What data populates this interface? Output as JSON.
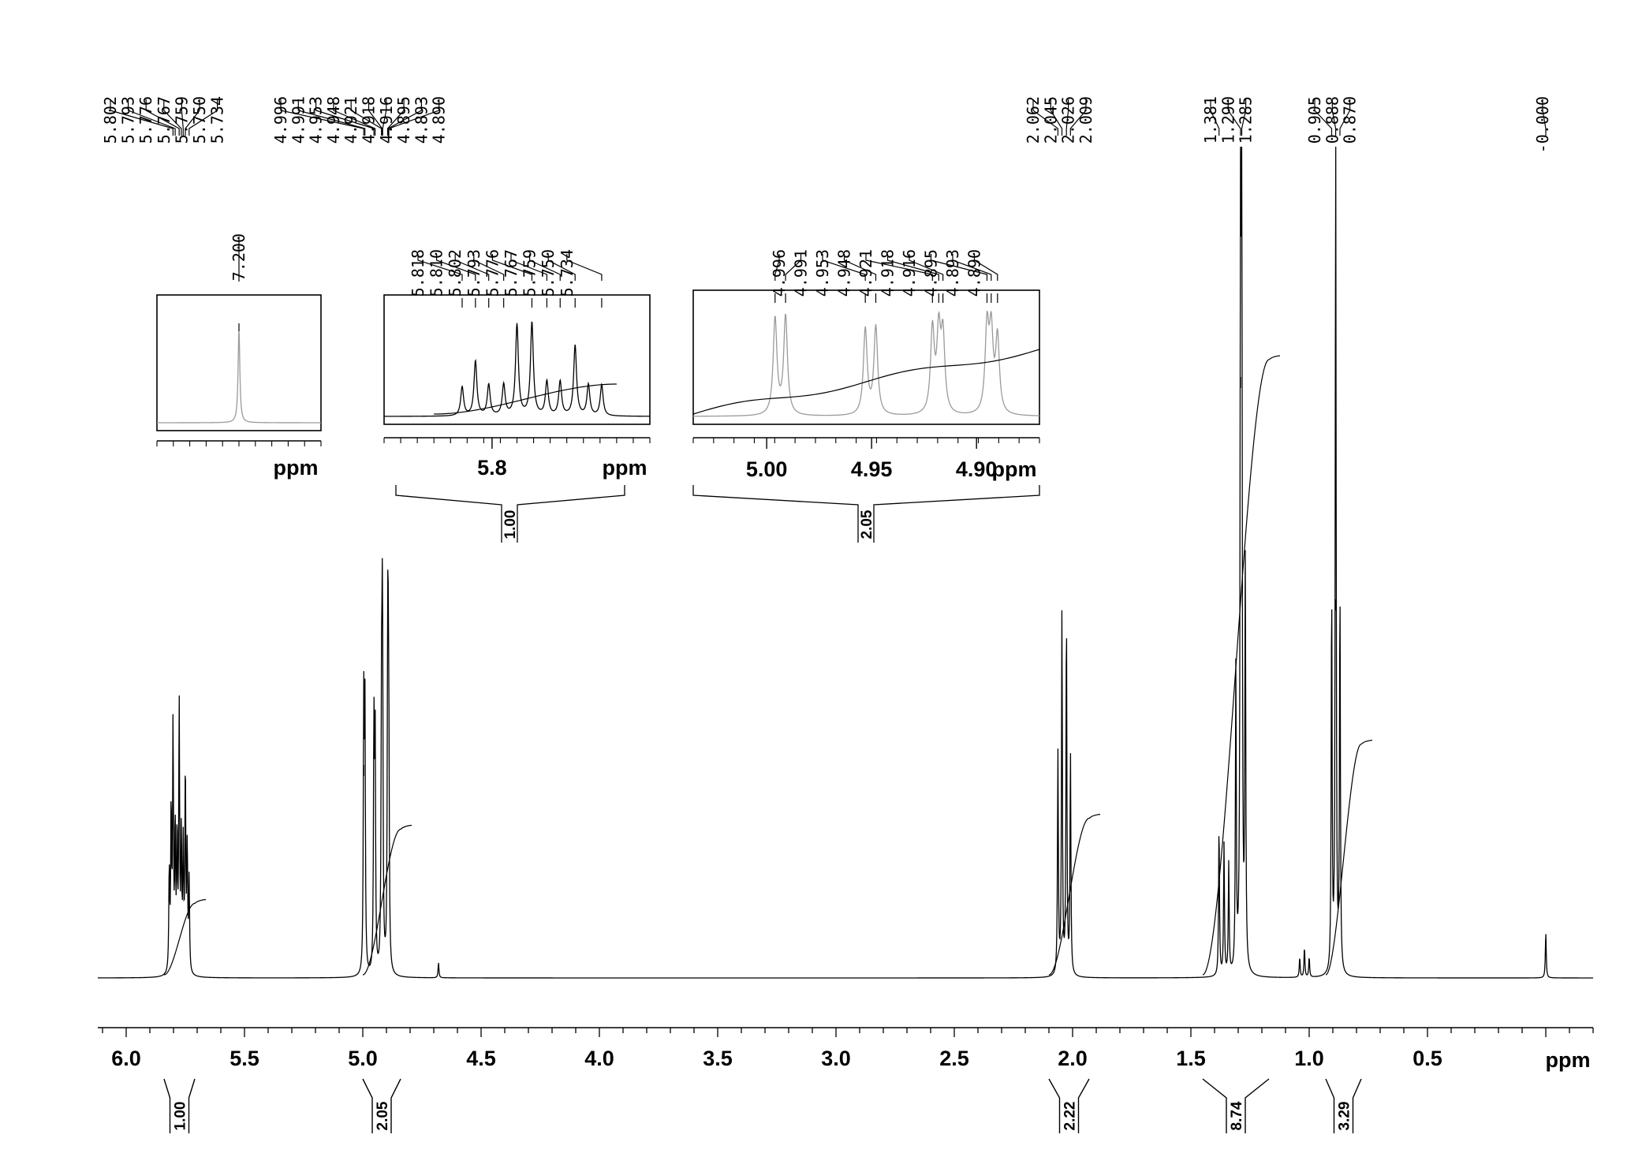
{
  "chart_data": {
    "type": "line",
    "nucleus": "1H NMR spectrum",
    "x_unit": "ppm",
    "xlim": [
      6.12,
      -0.2
    ],
    "x_reversed": true,
    "grid": false,
    "x_ticks": [
      {
        "value": 6.0,
        "label": "6.0"
      },
      {
        "value": 5.5,
        "label": "5.5"
      },
      {
        "value": 5.0,
        "label": "5.0"
      },
      {
        "value": 4.5,
        "label": "4.5"
      },
      {
        "value": 4.0,
        "label": "4.0"
      },
      {
        "value": 3.5,
        "label": "3.5"
      },
      {
        "value": 3.0,
        "label": "3.0"
      },
      {
        "value": 2.5,
        "label": "2.5"
      },
      {
        "value": 2.0,
        "label": "2.0"
      },
      {
        "value": 1.5,
        "label": "1.5"
      },
      {
        "value": 1.0,
        "label": "1.0"
      },
      {
        "value": 0.5,
        "label": "0.5"
      }
    ],
    "peaks": [
      {
        "ppm": 5.818,
        "height": 0.1
      },
      {
        "ppm": 5.81,
        "height": 0.16
      },
      {
        "ppm": 5.802,
        "height": 0.24
      },
      {
        "ppm": 5.793,
        "height": 0.14
      },
      {
        "ppm": 5.785,
        "height": 0.13
      },
      {
        "ppm": 5.776,
        "height": 0.26
      },
      {
        "ppm": 5.767,
        "height": 0.13
      },
      {
        "ppm": 5.759,
        "height": 0.12
      },
      {
        "ppm": 5.75,
        "height": 0.2
      },
      {
        "ppm": 5.742,
        "height": 0.12
      },
      {
        "ppm": 5.734,
        "height": 0.09
      },
      {
        "ppm": 4.996,
        "height": 0.26
      },
      {
        "ppm": 4.991,
        "height": 0.26
      },
      {
        "ppm": 4.953,
        "height": 0.24
      },
      {
        "ppm": 4.948,
        "height": 0.24
      },
      {
        "ppm": 4.921,
        "height": 0.22
      },
      {
        "ppm": 4.918,
        "height": 0.22
      },
      {
        "ppm": 4.916,
        "height": 0.2
      },
      {
        "ppm": 4.895,
        "height": 0.22
      },
      {
        "ppm": 4.893,
        "height": 0.21
      },
      {
        "ppm": 4.89,
        "height": 0.2
      },
      {
        "ppm": 4.68,
        "height": 0.015
      },
      {
        "ppm": 2.062,
        "height": 0.22
      },
      {
        "ppm": 2.045,
        "height": 0.36
      },
      {
        "ppm": 2.026,
        "height": 0.36
      },
      {
        "ppm": 2.009,
        "height": 0.22
      },
      {
        "ppm": 1.381,
        "height": 0.15
      },
      {
        "ppm": 1.36,
        "height": 0.13
      },
      {
        "ppm": 1.34,
        "height": 0.11
      },
      {
        "ppm": 1.31,
        "height": 0.3
      },
      {
        "ppm": 1.29,
        "height": 0.82
      },
      {
        "ppm": 1.285,
        "height": 0.78
      },
      {
        "ppm": 1.27,
        "height": 0.4
      },
      {
        "ppm": 1.04,
        "height": 0.02
      },
      {
        "ppm": 1.02,
        "height": 0.03
      },
      {
        "ppm": 1.0,
        "height": 0.02
      },
      {
        "ppm": 0.905,
        "height": 0.38
      },
      {
        "ppm": 0.888,
        "height": 0.85
      },
      {
        "ppm": 0.87,
        "height": 0.38
      },
      {
        "ppm": 0.0,
        "height": 0.045
      }
    ],
    "peak_labels": [
      {
        "label": "5.802",
        "ppm": 5.802
      },
      {
        "label": "5.793",
        "ppm": 5.793
      },
      {
        "label": "5.776",
        "ppm": 5.776
      },
      {
        "label": "5.767",
        "ppm": 5.767
      },
      {
        "label": "5.759",
        "ppm": 5.759
      },
      {
        "label": "5.750",
        "ppm": 5.75
      },
      {
        "label": "5.734",
        "ppm": 5.734
      },
      {
        "label": "4.996",
        "ppm": 4.996
      },
      {
        "label": "4.991",
        "ppm": 4.991
      },
      {
        "label": "4.953",
        "ppm": 4.953
      },
      {
        "label": "4.948",
        "ppm": 4.948
      },
      {
        "label": "4.921",
        "ppm": 4.921
      },
      {
        "label": "4.918",
        "ppm": 4.918
      },
      {
        "label": "4.916",
        "ppm": 4.916
      },
      {
        "label": "4.895",
        "ppm": 4.895
      },
      {
        "label": "4.893",
        "ppm": 4.893
      },
      {
        "label": "4.890",
        "ppm": 4.89
      },
      {
        "label": "2.062",
        "ppm": 2.062
      },
      {
        "label": "2.045",
        "ppm": 2.045
      },
      {
        "label": "2.026",
        "ppm": 2.026
      },
      {
        "label": "2.009",
        "ppm": 2.009
      },
      {
        "label": "1.381",
        "ppm": 1.381
      },
      {
        "label": "1.290",
        "ppm": 1.29
      },
      {
        "label": "1.285",
        "ppm": 1.285
      },
      {
        "label": "0.905",
        "ppm": 0.905
      },
      {
        "label": "0.888",
        "ppm": 0.888
      },
      {
        "label": "0.870",
        "ppm": 0.87
      },
      {
        "label": "-0.000",
        "ppm": 0.0
      }
    ],
    "integrals": [
      {
        "label": "1.00",
        "from": 5.84,
        "to": 5.71,
        "rel": 0.26
      },
      {
        "label": "2.05",
        "from": 5.0,
        "to": 4.84,
        "rel": 0.53
      },
      {
        "label": "2.22",
        "from": 2.1,
        "to": 1.93,
        "rel": 0.57
      },
      {
        "label": "8.74",
        "from": 1.45,
        "to": 1.17,
        "rel": 2.24
      },
      {
        "label": "3.29",
        "from": 0.93,
        "to": 0.78,
        "rel": 0.84
      }
    ],
    "insets": [
      {
        "xlim": [
          7.25,
          7.15
        ],
        "x_ticks": [],
        "axis_label": "ppm",
        "peak_labels": [
          {
            "label": "7.200",
            "ppm": 7.2
          }
        ],
        "peaks": [
          {
            "ppm": 7.2,
            "height": 0.85
          }
        ],
        "integral": null,
        "line_color": "#9a9a9a"
      },
      {
        "xlim": [
          5.865,
          5.705
        ],
        "x_ticks": [
          {
            "value": 5.8,
            "label": "5.8"
          }
        ],
        "axis_label": "ppm",
        "peak_labels": [
          {
            "label": "5.818",
            "ppm": 5.818
          },
          {
            "label": "5.810",
            "ppm": 5.81
          },
          {
            "label": "5.802",
            "ppm": 5.802
          },
          {
            "label": "5.793",
            "ppm": 5.793
          },
          {
            "label": "5.776",
            "ppm": 5.776
          },
          {
            "label": "5.767",
            "ppm": 5.767
          },
          {
            "label": "5.759",
            "ppm": 5.759
          },
          {
            "label": "5.750",
            "ppm": 5.75
          },
          {
            "label": "5.734",
            "ppm": 5.734
          }
        ],
        "peaks": [
          {
            "ppm": 5.818,
            "height": 0.28
          },
          {
            "ppm": 5.81,
            "height": 0.53
          },
          {
            "ppm": 5.802,
            "height": 0.3
          },
          {
            "ppm": 5.793,
            "height": 0.3
          },
          {
            "ppm": 5.785,
            "height": 0.88
          },
          {
            "ppm": 5.776,
            "height": 0.9
          },
          {
            "ppm": 5.767,
            "height": 0.33
          },
          {
            "ppm": 5.759,
            "height": 0.33
          },
          {
            "ppm": 5.75,
            "height": 0.68
          },
          {
            "ppm": 5.742,
            "height": 0.3
          },
          {
            "ppm": 5.734,
            "height": 0.3
          }
        ],
        "integral": {
          "label": "1.00",
          "from": 5.835,
          "to": 5.725
        },
        "line_color": "#000000"
      },
      {
        "xlim": [
          5.035,
          4.87
        ],
        "x_ticks": [
          {
            "value": 5.0,
            "label": "5.00"
          },
          {
            "value": 4.95,
            "label": "4.95"
          },
          {
            "value": 4.9,
            "label": "4.90"
          }
        ],
        "axis_label": "ppm",
        "peak_labels": [
          {
            "label": "4.996",
            "ppm": 4.996
          },
          {
            "label": "4.991",
            "ppm": 4.991
          },
          {
            "label": "4.953",
            "ppm": 4.953
          },
          {
            "label": "4.948",
            "ppm": 4.948
          },
          {
            "label": "4.921",
            "ppm": 4.921
          },
          {
            "label": "4.918",
            "ppm": 4.918
          },
          {
            "label": "4.916",
            "ppm": 4.916
          },
          {
            "label": "4.895",
            "ppm": 4.895
          },
          {
            "label": "4.893",
            "ppm": 4.893
          },
          {
            "label": "4.890",
            "ppm": 4.89
          }
        ],
        "peaks": [
          {
            "ppm": 4.996,
            "height": 0.9
          },
          {
            "ppm": 4.991,
            "height": 0.92
          },
          {
            "ppm": 4.953,
            "height": 0.8
          },
          {
            "ppm": 4.948,
            "height": 0.82
          },
          {
            "ppm": 4.921,
            "height": 0.78
          },
          {
            "ppm": 4.918,
            "height": 0.72
          },
          {
            "ppm": 4.916,
            "height": 0.7
          },
          {
            "ppm": 4.895,
            "height": 0.78
          },
          {
            "ppm": 4.893,
            "height": 0.72
          },
          {
            "ppm": 4.89,
            "height": 0.7
          }
        ],
        "integral": {
          "label": "2.05",
          "from": 5.035,
          "to": 4.87
        },
        "line_color": "#9a9a9a"
      }
    ]
  }
}
